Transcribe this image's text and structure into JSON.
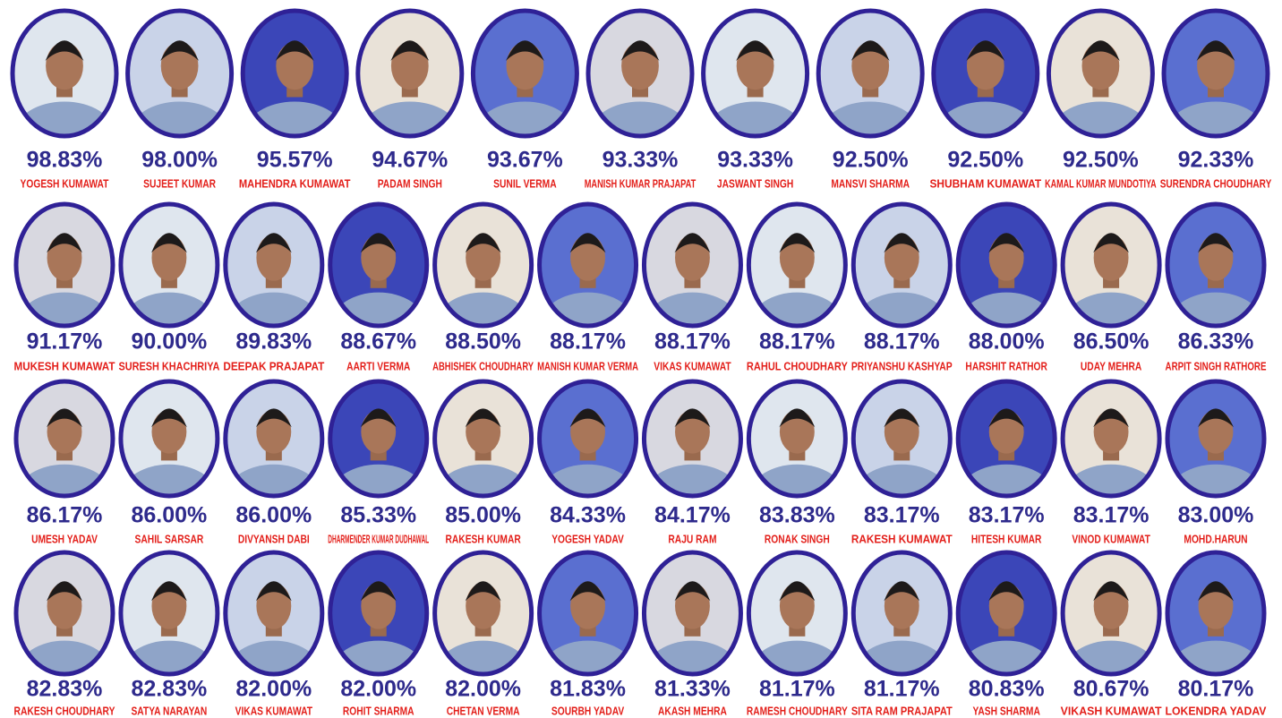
{
  "rows": [
    [
      {
        "score": "98.83%",
        "name": "YOGESH KUMAWAT"
      },
      {
        "score": "98.00%",
        "name": "SUJEET KUMAR"
      },
      {
        "score": "95.57%",
        "name": "MAHENDRA KUMAWAT"
      },
      {
        "score": "94.67%",
        "name": "PADAM SINGH"
      },
      {
        "score": "93.67%",
        "name": "SUNIL VERMA"
      },
      {
        "score": "93.33%",
        "name": "MANISH KUMAR PRAJAPAT"
      },
      {
        "score": "93.33%",
        "name": "JASWANT SINGH"
      },
      {
        "score": "92.50%",
        "name": "MANSVI SHARMA"
      },
      {
        "score": "92.50%",
        "name": "SHUBHAM KUMAWAT"
      },
      {
        "score": "92.50%",
        "name": "KAMAL KUMAR MUNDOTIYA"
      },
      {
        "score": "92.33%",
        "name": "SURENDRA CHOUDHARY"
      }
    ],
    [
      {
        "score": "91.17%",
        "name": "MUKESH KUMAWAT"
      },
      {
        "score": "90.00%",
        "name": "SURESH KHACHRIYA"
      },
      {
        "score": "89.83%",
        "name": "DEEPAK PRAJAPAT"
      },
      {
        "score": "88.67%",
        "name": "AARTI VERMA"
      },
      {
        "score": "88.50%",
        "name": "ABHISHEK CHOUDHARY"
      },
      {
        "score": "88.17%",
        "name": "MANISH KUMAR VERMA"
      },
      {
        "score": "88.17%",
        "name": "VIKAS KUMAWAT"
      },
      {
        "score": "88.17%",
        "name": "RAHUL CHOUDHARY"
      },
      {
        "score": "88.17%",
        "name": "PRIYANSHU KASHYAP"
      },
      {
        "score": "88.00%",
        "name": "HARSHIT RATHOR"
      },
      {
        "score": "86.50%",
        "name": "UDAY MEHRA"
      },
      {
        "score": "86.33%",
        "name": "ARPIT SINGH RATHORE"
      }
    ],
    [
      {
        "score": "86.17%",
        "name": "UMESH YADAV"
      },
      {
        "score": "86.00%",
        "name": "SAHIL SARSAR"
      },
      {
        "score": "86.00%",
        "name": "DIVYANSH DABI"
      },
      {
        "score": "85.33%",
        "name": "DHARMENDER KUMAR DUDHAWAL"
      },
      {
        "score": "85.00%",
        "name": "RAKESH KUMAR"
      },
      {
        "score": "84.33%",
        "name": "YOGESH YADAV"
      },
      {
        "score": "84.17%",
        "name": "RAJU RAM"
      },
      {
        "score": "83.83%",
        "name": "RONAK SINGH"
      },
      {
        "score": "83.17%",
        "name": "RAKESH KUMAWAT"
      },
      {
        "score": "83.17%",
        "name": "HITESH KUMAR"
      },
      {
        "score": "83.17%",
        "name": "VINOD KUMAWAT"
      },
      {
        "score": "83.00%",
        "name": "MOHD.HARUN"
      }
    ],
    [
      {
        "score": "82.83%",
        "name": "RAKESH CHOUDHARY"
      },
      {
        "score": "82.83%",
        "name": "SATYA NARAYAN"
      },
      {
        "score": "82.00%",
        "name": "VIKAS KUMAWAT"
      },
      {
        "score": "82.00%",
        "name": "ROHIT SHARMA"
      },
      {
        "score": "82.00%",
        "name": "CHETAN VERMA"
      },
      {
        "score": "81.83%",
        "name": "SOURBH YADAV"
      },
      {
        "score": "81.33%",
        "name": "AKASH MEHRA"
      },
      {
        "score": "81.17%",
        "name": "RAMESH CHOUDHARY"
      },
      {
        "score": "81.17%",
        "name": "SITA RAM PRAJAPAT"
      },
      {
        "score": "80.83%",
        "name": "YASH SHARMA"
      },
      {
        "score": "80.67%",
        "name": "VIKASH KUMAWAT"
      },
      {
        "score": "80.17%",
        "name": "LOKENDRA YADAV"
      }
    ]
  ]
}
